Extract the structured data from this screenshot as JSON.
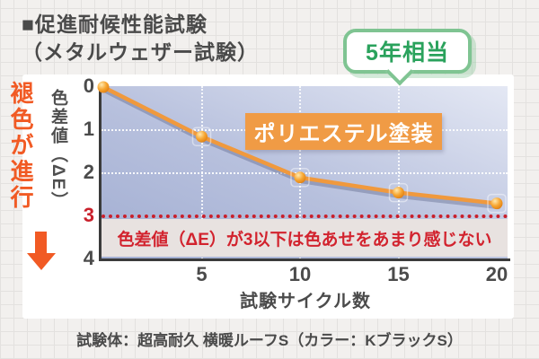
{
  "title": {
    "line1": "■促進耐候性能試験",
    "line2": "（メタルウェザー試験）"
  },
  "annotation_bubble": {
    "label": "5年相当"
  },
  "fade_indicator": {
    "label": "褪色が進行"
  },
  "series_label": "ポリエステル塗装",
  "threshold_note": "色差値（ΔE）が3以下は色あせをあまり感じない",
  "caption": "試験体：超高耐久 横暖ルーフS（カラー：KブラックS）",
  "colors": {
    "accent_orange": "#f15a24",
    "line_orange": "#f0993d",
    "label_box_orange": "#f09b45",
    "green_text": "#2aa25c",
    "green_border": "#7fc492",
    "red": "#c9202b",
    "text_dark": "#4a4a4a",
    "plot_gradient_dark": "#a2aed2",
    "plot_gradient_light": "#e4e8f4",
    "band_background": "#e8e2e0"
  },
  "chart_data": {
    "type": "line",
    "series": [
      {
        "name": "ポリエステル塗装",
        "x": [
          0,
          5,
          10,
          15,
          20
        ],
        "values": [
          0,
          1.15,
          2.1,
          2.45,
          2.7
        ]
      }
    ],
    "xlabel": "試験サイクル数",
    "ylabel": "色差値（ΔE）",
    "x_ticks": [
      5,
      10,
      15,
      20
    ],
    "y_ticks": [
      0,
      1,
      2,
      3,
      4
    ],
    "xlim": [
      0,
      20.6
    ],
    "ylim": [
      0,
      4
    ],
    "y_axis_points_downward": true,
    "h_gridlines_at": [
      1,
      2
    ],
    "v_gridlines_at": [
      5,
      10,
      15
    ],
    "grid_style": "dotted white",
    "threshold_value": 3,
    "threshold_line_style": "dotted red",
    "threshold_note": "色差値（ΔE）が3以下は色あせをあまり感じない",
    "annotation": {
      "text": "5年相当",
      "points_to_x": 15
    },
    "legend_position": "label box inside plot"
  }
}
